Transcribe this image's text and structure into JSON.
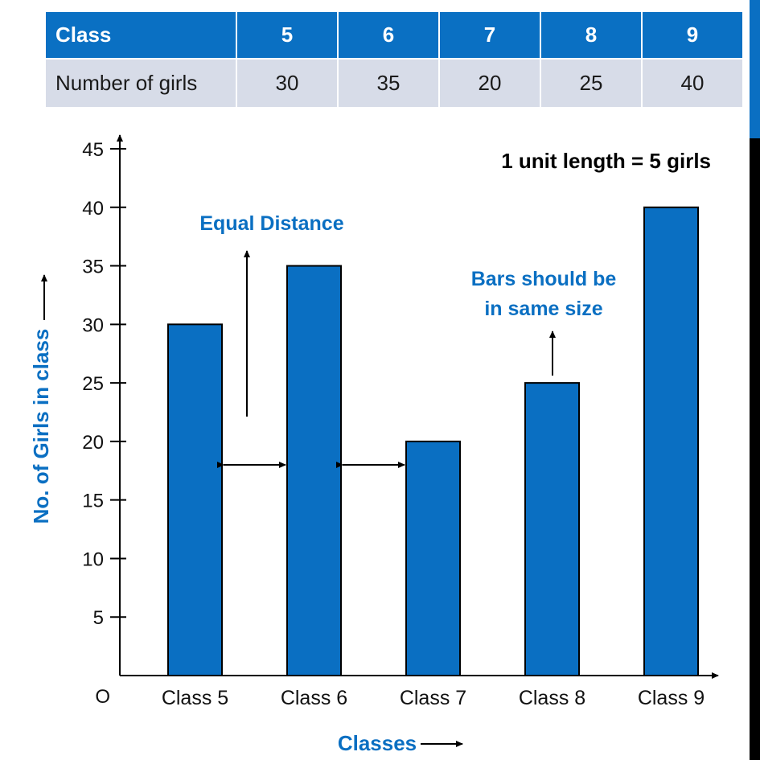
{
  "table": {
    "header": [
      "Class",
      "5",
      "6",
      "7",
      "8",
      "9"
    ],
    "row": [
      "Number of girls",
      "30",
      "35",
      "20",
      "25",
      "40"
    ]
  },
  "chart_data": {
    "type": "bar",
    "categories": [
      "Class 5",
      "Class 6",
      "Class 7",
      "Class 8",
      "Class 9"
    ],
    "values": [
      30,
      35,
      20,
      25,
      40
    ],
    "xlabel": "Classes",
    "ylabel": "No. of Girls in class",
    "origin_label": "O",
    "yticks": [
      5,
      10,
      15,
      20,
      25,
      30,
      35,
      40,
      45
    ],
    "ylim": [
      0,
      45
    ],
    "grid": false,
    "bar_color": "#0a6fc2",
    "scale_note": "1 unit length = 5 girls",
    "annotations": {
      "equal_distance": "Equal Distance",
      "same_size_line1": "Bars should be",
      "same_size_line2": "in same size"
    }
  },
  "colors": {
    "accent": "#0a6fc2",
    "table_header_bg": "#0a70c3",
    "table_row_bg": "#d7dce8"
  }
}
